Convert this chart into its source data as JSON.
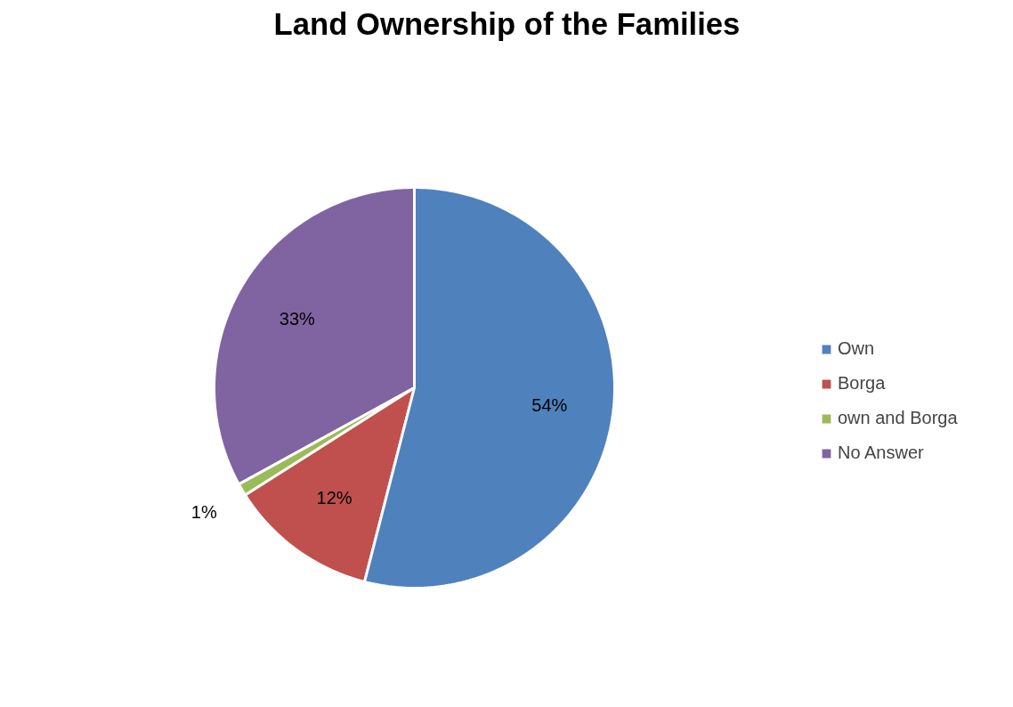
{
  "chart_data": {
    "type": "pie",
    "title": "Land Ownership of the Families",
    "categories": [
      "Own",
      "Borga",
      "own and Borga",
      "No Answer"
    ],
    "values": [
      54,
      12,
      1,
      33
    ],
    "colors": [
      "#4f81bd",
      "#c0504d",
      "#9bbb59",
      "#8064a2"
    ],
    "value_labels": [
      "54%",
      "12%",
      "1%",
      "33%"
    ],
    "legend": "right"
  }
}
